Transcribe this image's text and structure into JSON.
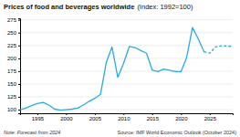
{
  "chart_data": {
    "type": "line",
    "title": "Prices of food and beverages worldwide",
    "subtitle": "(Index: 1992=100)",
    "annotations": [
      "Note: Forecast from 2024",
      "Source: IMF World Economic Outlook (October 2024)"
    ],
    "x": [
      1992,
      1993,
      1994,
      1995,
      1996,
      1997,
      1998,
      1999,
      2000,
      2001,
      2002,
      2003,
      2004,
      2005,
      2006,
      2007,
      2008,
      2009,
      2010,
      2011,
      2012,
      2013,
      2014,
      2015,
      2016,
      2017,
      2018,
      2019,
      2020,
      2021,
      2022,
      2023,
      2024,
      2025,
      2026,
      2027,
      2028,
      2029
    ],
    "series": [
      {
        "color": "#29ABE2",
        "line_style": "solid",
        "values": [
          100,
          103,
          108,
          112,
          114,
          109,
          101,
          99,
          100,
          101,
          103,
          109,
          116,
          122,
          130,
          192,
          222,
          163,
          190,
          223,
          221,
          215,
          210,
          177,
          174,
          179,
          177,
          174,
          174,
          202,
          260,
          238,
          213,
          null,
          null,
          null,
          null,
          null
        ]
      },
      {
        "color": "#29ABE2",
        "line_style": "dashed",
        "values": [
          null,
          null,
          null,
          null,
          null,
          null,
          null,
          null,
          null,
          null,
          null,
          null,
          null,
          null,
          null,
          null,
          null,
          null,
          null,
          null,
          null,
          null,
          null,
          null,
          null,
          null,
          null,
          null,
          null,
          null,
          null,
          null,
          213,
          210,
          222,
          224,
          224,
          223
        ]
      }
    ],
    "xlim": [
      1992,
      2029
    ],
    "xticks": [
      1995,
      2000,
      2005,
      2010,
      2015,
      2020,
      2025
    ],
    "ylim": [
      93,
      278
    ],
    "yticks": [
      100,
      125,
      150,
      175,
      200,
      225,
      250,
      275
    ],
    "grid": "y"
  }
}
